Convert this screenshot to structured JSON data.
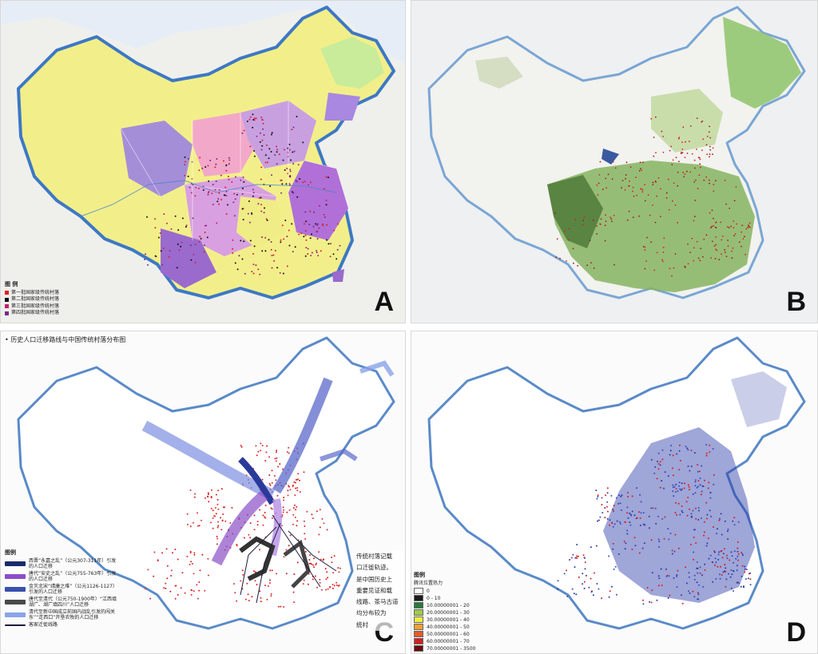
{
  "panels": [
    {
      "letter": "A"
    },
    {
      "letter": "B"
    },
    {
      "letter": "C"
    },
    {
      "letter": "D"
    }
  ],
  "panel_a_legend": {
    "title": "图  例",
    "items": [
      {
        "label": "第一批国家级传统村落",
        "color": "#e02020"
      },
      {
        "label": "第二批国家级传统村落",
        "color": "#111111"
      },
      {
        "label": "第三批国家级传统村落",
        "color": "#c0206a"
      },
      {
        "label": "第四批国家级传统村落",
        "color": "#7a2a8a"
      }
    ]
  },
  "panel_c": {
    "title": "历史人口迁移路线与中国传统村落分布图",
    "legend_title": "图例",
    "legend_items": [
      {
        "label": "西晋“永嘉之乱”（公元307-311年）引发的人口迁移",
        "color": "#1a2a6a"
      },
      {
        "label": "唐代“安史之乱”（公元755-763年）引发的人口迁移",
        "color": "#8a4ec8"
      },
      {
        "label": "金灭北宋“靖康之难”（公元1126-1127）引发的人口迁移",
        "color": "#3a4fae"
      },
      {
        "label": "唐代至清代（公元750-1900年）“江西填湖广、湖广填四川”人口迁移",
        "color": "#4a4a4a"
      },
      {
        "label": "清代至新中国成立前国内战乱引发的闯关东”“走西口”开垦农牧的人口迁移",
        "color": "#8aa4e8"
      },
      {
        "label": "客家迁徙线路",
        "color": "#1c1c3c"
      }
    ],
    "callout_lines": [
      "传统村落记载",
      "口迁徙轨迹。",
      "是中国历史上",
      "重要见证和载",
      "线路、茶马古道",
      "均分布较为",
      "统村"
    ]
  },
  "panel_d_legend": {
    "title": "图例",
    "subtitle": "腾讯位置热力",
    "items": [
      {
        "label": "0",
        "color": "#ffffff"
      },
      {
        "label": "0 - 10",
        "color": "#1a1a1a"
      },
      {
        "label": "10.00000001 - 20",
        "color": "#2b7a3a"
      },
      {
        "label": "20.00000001 - 30",
        "color": "#9ccc4c"
      },
      {
        "label": "30.00000001 - 40",
        "color": "#f2ee3a"
      },
      {
        "label": "40.00000001 - 50",
        "color": "#f2a030"
      },
      {
        "label": "50.00000001 - 60",
        "color": "#e85a24"
      },
      {
        "label": "60.00000001 - 70",
        "color": "#d42020"
      },
      {
        "label": "70.00000001 - 3500",
        "color": "#6a0a0a"
      }
    ]
  },
  "colors": {
    "ocean": "#dfe8f4",
    "land_outside": "#f4f2ea",
    "border_blue": "#4a86c8",
    "village_red": "#d81e1e",
    "heat_blue": "#2a3aa8"
  }
}
